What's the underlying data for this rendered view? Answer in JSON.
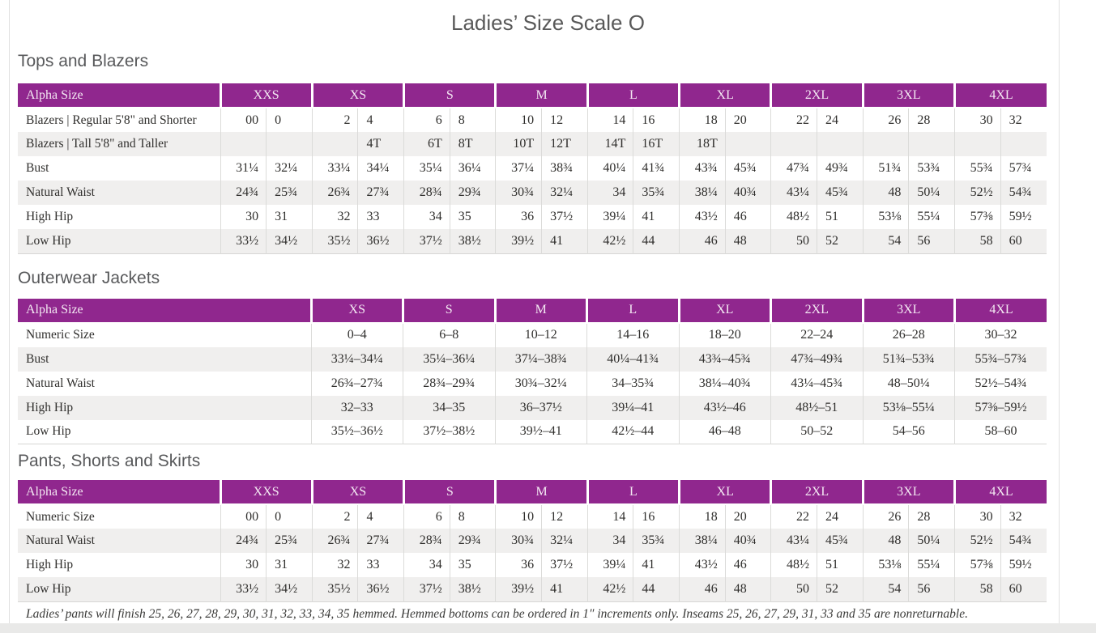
{
  "page": {
    "title": "Ladies’ Size Scale O",
    "footnote": "Ladies’ pants will finish 25, 26, 27, 28, 29, 30, 31, 32, 33, 34, 35 hemmed. Hemmed bottoms can be ordered in 1″ increments only. Inseams 25, 26, 27, 29, 31, 33 and 35 are nonreturnable."
  },
  "colors": {
    "accent_purple": "#90278e",
    "header_text": "#f4e9f3",
    "row_alt": "#f0efee",
    "heading_text": "#58595b",
    "body_text": "#302f2d"
  },
  "tables": [
    {
      "section": "Tops and Blazers",
      "header": {
        "label": "Alpha Size",
        "groups": [
          "XXS",
          "XS",
          "S",
          "M",
          "L",
          "XL",
          "2XL",
          "3XL",
          "4XL"
        ]
      },
      "rows": [
        {
          "label": "Blazers  |  Regular 5'8\" and Shorter",
          "values": [
            "00",
            "0",
            "2",
            "4",
            "6",
            "8",
            "10",
            "12",
            "14",
            "16",
            "18",
            "20",
            "22",
            "24",
            "26",
            "28",
            "30",
            "32"
          ]
        },
        {
          "label": "Blazers  |  Tall 5'8\" and Taller",
          "values": [
            "",
            "",
            "",
            "4T",
            "6T",
            "8T",
            "10T",
            "12T",
            "14T",
            "16T",
            "18T",
            "",
            "",
            "",
            "",
            "",
            "",
            ""
          ]
        },
        {
          "label": "Bust",
          "values": [
            "31¼",
            "32¼",
            "33¼",
            "34¼",
            "35¼",
            "36¼",
            "37¼",
            "38¾",
            "40¼",
            "41¾",
            "43¾",
            "45¾",
            "47¾",
            "49¾",
            "51¾",
            "53¾",
            "55¾",
            "57¾"
          ]
        },
        {
          "label": "Natural Waist",
          "values": [
            "24¾",
            "25¾",
            "26¾",
            "27¾",
            "28¾",
            "29¾",
            "30¾",
            "32¼",
            "34",
            "35¾",
            "38¼",
            "40¾",
            "43¼",
            "45¾",
            "48",
            "50¼",
            "52½",
            "54¾"
          ]
        },
        {
          "label": "High Hip",
          "values": [
            "30",
            "31",
            "32",
            "33",
            "34",
            "35",
            "36",
            "37½",
            "39¼",
            "41",
            "43½",
            "46",
            "48½",
            "51",
            "53⅛",
            "55¼",
            "57⅜",
            "59½"
          ]
        },
        {
          "label": "Low Hip",
          "values": [
            "33½",
            "34½",
            "35½",
            "36½",
            "37½",
            "38½",
            "39½",
            "41",
            "42½",
            "44",
            "46",
            "48",
            "50",
            "52",
            "54",
            "56",
            "58",
            "60"
          ]
        }
      ]
    },
    {
      "section": "Outerwear Jackets",
      "header": {
        "label": "Alpha Size",
        "groups": [
          "XS",
          "S",
          "M",
          "L",
          "XL",
          "2XL",
          "3XL",
          "4XL"
        ]
      },
      "rows": [
        {
          "label": "Numeric Size",
          "values": [
            "0–4",
            "6–8",
            "10–12",
            "14–16",
            "18–20",
            "22–24",
            "26–28",
            "30–32"
          ]
        },
        {
          "label": "Bust",
          "values": [
            "33¼–34¼",
            "35¼–36¼",
            "37¼–38¾",
            "40¼–41¾",
            "43¾–45¾",
            "47¾–49¾",
            "51¾–53¾",
            "55¾–57¾"
          ]
        },
        {
          "label": "Natural Waist",
          "values": [
            "26¾–27¾",
            "28¾–29¾",
            "30¾–32¼",
            "34–35¾",
            "38¼–40¾",
            "43¼–45¾",
            "48–50¼",
            "52½–54¾"
          ]
        },
        {
          "label": "High Hip",
          "values": [
            "32–33",
            "34–35",
            "36–37½",
            "39¼–41",
            "43½–46",
            "48½–51",
            "53⅛–55¼",
            "57⅜–59½"
          ]
        },
        {
          "label": "Low Hip",
          "values": [
            "35½–36½",
            "37½–38½",
            "39½–41",
            "42½–44",
            "46–48",
            "50–52",
            "54–56",
            "58–60"
          ]
        }
      ]
    },
    {
      "section": "Pants, Shorts and Skirts",
      "header": {
        "label": "Alpha Size",
        "groups": [
          "XXS",
          "XS",
          "S",
          "M",
          "L",
          "XL",
          "2XL",
          "3XL",
          "4XL"
        ]
      },
      "rows": [
        {
          "label": "Numeric Size",
          "values": [
            "00",
            "0",
            "2",
            "4",
            "6",
            "8",
            "10",
            "12",
            "14",
            "16",
            "18",
            "20",
            "22",
            "24",
            "26",
            "28",
            "30",
            "32"
          ]
        },
        {
          "label": "Natural Waist",
          "values": [
            "24¾",
            "25¾",
            "26¾",
            "27¾",
            "28¾",
            "29¾",
            "30¾",
            "32¼",
            "34",
            "35¾",
            "38¼",
            "40¾",
            "43¼",
            "45¾",
            "48",
            "50¼",
            "52½",
            "54¾"
          ]
        },
        {
          "label": "High Hip",
          "values": [
            "30",
            "31",
            "32",
            "33",
            "34",
            "35",
            "36",
            "37½",
            "39¼",
            "41",
            "43½",
            "46",
            "48½",
            "51",
            "53⅛",
            "55¼",
            "57⅜",
            "59½"
          ]
        },
        {
          "label": "Low Hip",
          "values": [
            "33½",
            "34½",
            "35½",
            "36½",
            "37½",
            "38½",
            "39½",
            "41",
            "42½",
            "44",
            "46",
            "48",
            "50",
            "52",
            "54",
            "56",
            "58",
            "60"
          ]
        }
      ]
    }
  ]
}
